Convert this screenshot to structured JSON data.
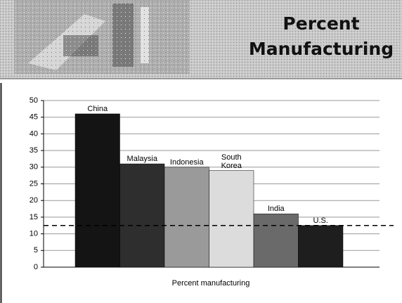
{
  "chart_data": {
    "type": "bar",
    "title": "Percent Manufacturing",
    "x_label": "Percent manufacturing",
    "categories": [
      "China",
      "Malaysia",
      "Indonesia",
      "South Korea",
      "India",
      "U.S."
    ],
    "values": [
      46,
      31,
      30,
      29,
      16,
      12.5
    ],
    "colors": [
      "#141414",
      "#2e2e2e",
      "#9a9a9a",
      "#dcdcdc",
      "#6a6a6a",
      "#1e1e1e"
    ],
    "reference_line": 12.5,
    "ylim": [
      0,
      50
    ],
    "yticks": [
      0,
      5,
      10,
      15,
      20,
      25,
      30,
      35,
      40,
      45,
      50
    ],
    "grid": true
  }
}
